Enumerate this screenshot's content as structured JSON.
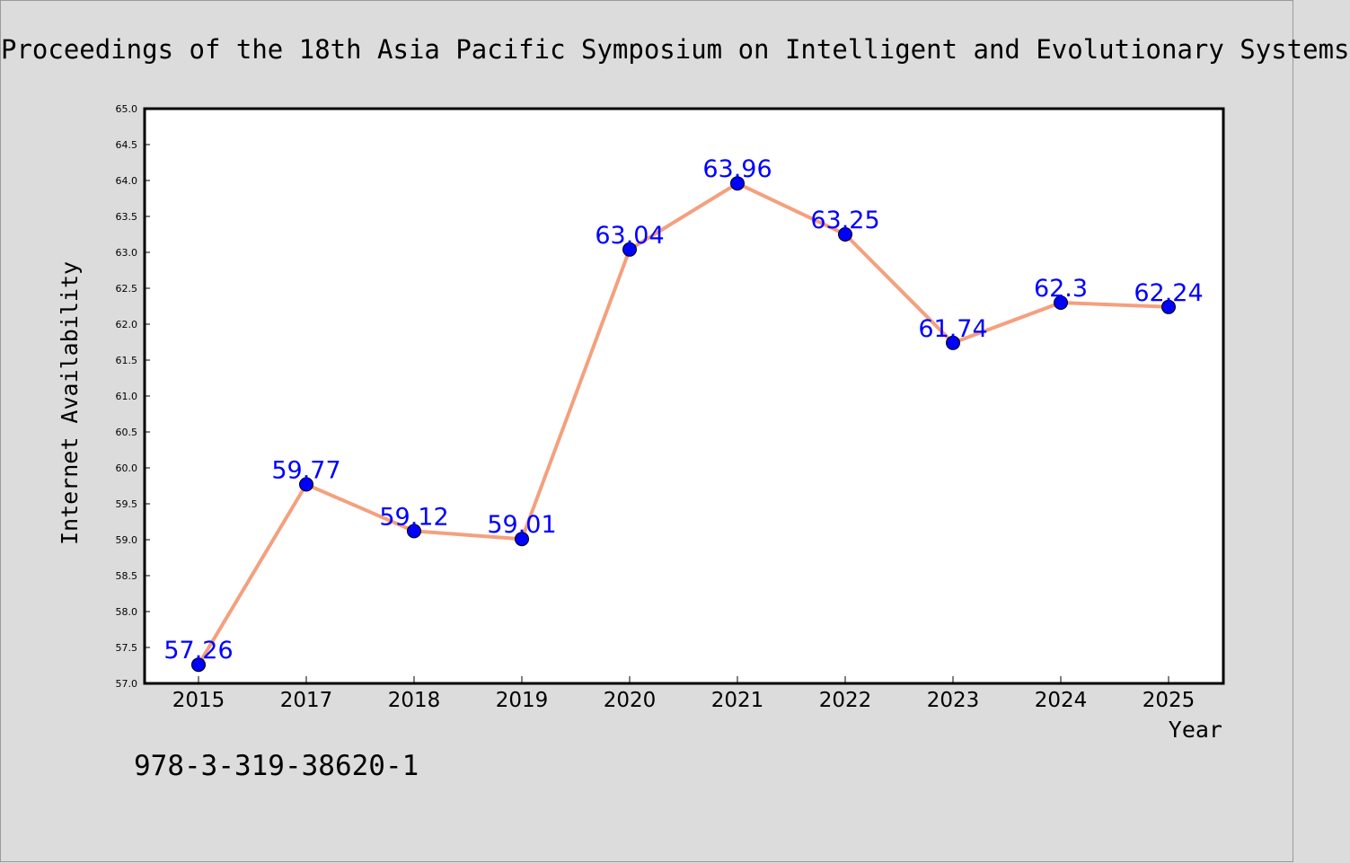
{
  "chart_data": {
    "type": "line",
    "title": "Proceedings of the 18th Asia Pacific Symposium on Intelligent and Evolutionary Systems",
    "xlabel": "Year",
    "ylabel": "Internet Availability",
    "categories": [
      "2015",
      "2017",
      "2018",
      "2019",
      "2020",
      "2021",
      "2022",
      "2023",
      "2024",
      "2025"
    ],
    "values": [
      57.26,
      59.77,
      59.12,
      59.01,
      63.04,
      63.96,
      63.25,
      61.74,
      62.3,
      62.24
    ],
    "value_labels": [
      "57.26",
      "59.77",
      "59.12",
      "59.01",
      "63.04",
      "63.96",
      "63.25",
      "61.74",
      "62.3",
      "62.24"
    ],
    "ylim": [
      57.0,
      65.0
    ],
    "yticks": [
      "57.0",
      "57.5",
      "58.0",
      "58.5",
      "59.0",
      "59.5",
      "60.0",
      "60.5",
      "61.0",
      "61.5",
      "62.0",
      "62.5",
      "63.0",
      "63.5",
      "64.0",
      "64.5",
      "65.0"
    ],
    "grid": false,
    "legend": "none",
    "line_color": "#f4a07e",
    "marker_color": "#0000ff",
    "label_color": "#0000ff"
  },
  "footer": {
    "isbn": "978-3-319-38620-1"
  }
}
